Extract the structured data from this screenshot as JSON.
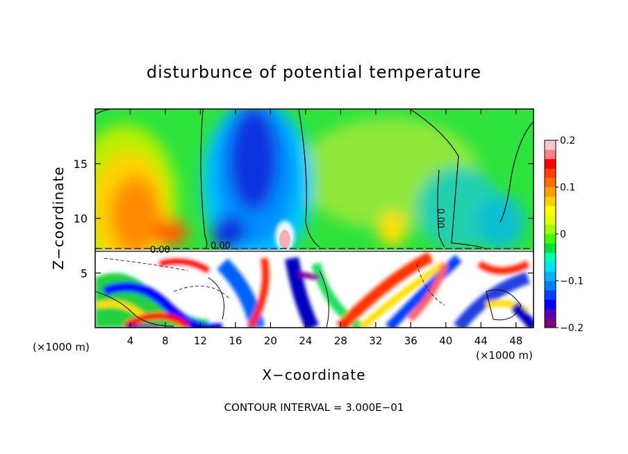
{
  "chart_data": {
    "type": "heatmap",
    "title": "disturbunce of potential temperature",
    "xlabel": "X−coordinate",
    "ylabel": "Z−coordinate",
    "x_unit_left": "(×1000 m)",
    "x_unit_right": "(×1000 m)",
    "footer": "CONTOUR INTERVAL = 3.000E−01",
    "xlim": [
      0,
      50
    ],
    "ylim": [
      0,
      20
    ],
    "x_ticks": [
      "4",
      "8",
      "12",
      "16",
      "20",
      "24",
      "28",
      "32",
      "36",
      "40",
      "44",
      "48"
    ],
    "y_ticks": [
      "5",
      "10",
      "15"
    ],
    "colorbar": {
      "range": [
        -0.2,
        0.2
      ],
      "tick_labels": [
        "0.2",
        "0.1",
        "0",
        "−0.1",
        "−0.2"
      ],
      "colors": [
        "#800080",
        "#5a00b4",
        "#0000ff",
        "#0040ff",
        "#0080ff",
        "#00b4ff",
        "#00e4ff",
        "#00ffb0",
        "#00e040",
        "#40ff00",
        "#a0ff00",
        "#e0ff00",
        "#ffff00",
        "#ffd000",
        "#ffa000",
        "#ff7000",
        "#ff4000",
        "#ff0000",
        "#ff8080",
        "#ffc8c8"
      ]
    },
    "contour_labels": [
      "0.00",
      "0.00",
      "0.00"
    ],
    "features": [
      {
        "kind": "warm",
        "x": 6,
        "z": 12,
        "value": 0.13
      },
      {
        "kind": "cold",
        "x": 18,
        "z": 15,
        "value": -0.19
      },
      {
        "kind": "warm",
        "x": 21,
        "z": 9,
        "value": 0.2
      },
      {
        "kind": "cold",
        "x": 42,
        "z": 12,
        "value": -0.06
      }
    ]
  }
}
